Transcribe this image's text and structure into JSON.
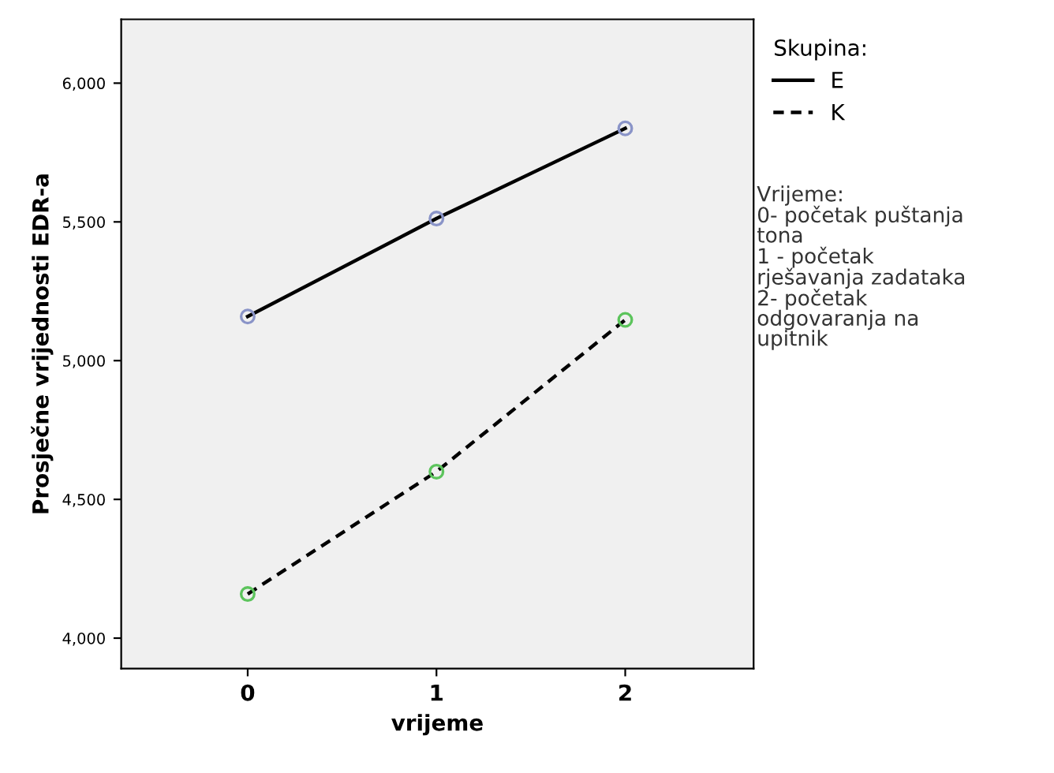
{
  "chart_data": {
    "type": "line",
    "xlabel": "vrijeme",
    "ylabel": "Prosječne vrijednosti EDR-a",
    "legend_title": "Skupina:",
    "x": [
      0,
      1,
      2
    ],
    "xlim": [
      -0.67,
      2.68
    ],
    "xticks": [
      0,
      1,
      2
    ],
    "ylim": [
      3890,
      6230
    ],
    "yticks": [
      {
        "value": 4000,
        "label": "4,000"
      },
      {
        "value": 4500,
        "label": "4,500"
      },
      {
        "value": 5000,
        "label": "5,000"
      },
      {
        "value": 5500,
        "label": "5,500"
      },
      {
        "value": 6000,
        "label": "6,000"
      }
    ],
    "series": [
      {
        "name": "E",
        "color": "#000000",
        "colors": [
          "#8a94c8",
          "#8a94c8",
          "#8a94c8"
        ],
        "line_style": "solid",
        "values": [
          5159,
          5512,
          5837
        ]
      },
      {
        "name": "K",
        "color": "#000000",
        "colors": [
          "#5cc45c",
          "#5cc45c",
          "#5cc45c"
        ],
        "line_style": "dashed",
        "values": [
          4159,
          4600,
          5147
        ]
      }
    ],
    "marker": "circle",
    "grid": false,
    "legend": "top right",
    "annotations": [
      "Vrijeme:\n0- početak puštanja\ntona\n1 - početak\nrješavanja zadataka\n2- početak\nodgovaranja na\nupitnik"
    ]
  }
}
